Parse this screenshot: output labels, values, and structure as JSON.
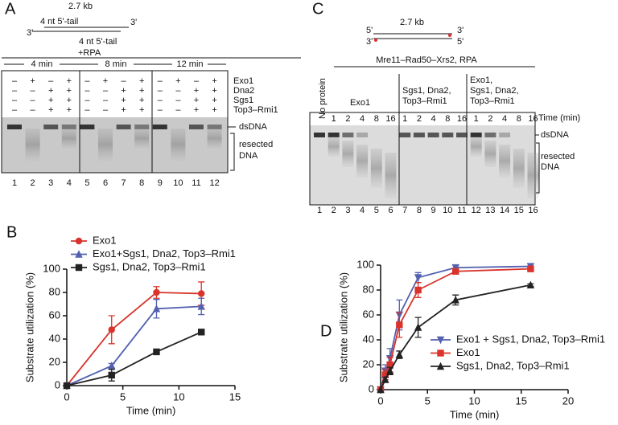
{
  "gel_a": {
    "panel_label": "A",
    "length": "2.7 kb",
    "tail_top": "4 nt 5'-tail",
    "end_top": "3'",
    "end_bottom": "3'",
    "tail_bottom": "4 nt 5'-tail",
    "condition": "+RPA",
    "times": [
      "4 min",
      "8 min",
      "12 min"
    ],
    "row_labels": [
      "Exo1",
      "Dna2",
      "Sgs1",
      "Top3–Rmi1"
    ],
    "signs": [
      [
        "–",
        "+",
        "–",
        "+",
        "–",
        "+",
        "–",
        "+",
        "–",
        "+",
        "–",
        "+"
      ],
      [
        "–",
        "–",
        "+",
        "+",
        "–",
        "–",
        "+",
        "+",
        "–",
        "–",
        "+",
        "+"
      ],
      [
        "–",
        "–",
        "+",
        "+",
        "–",
        "–",
        "+",
        "+",
        "–",
        "–",
        "+",
        "+"
      ],
      [
        "–",
        "–",
        "+",
        "+",
        "–",
        "–",
        "+",
        "+",
        "–",
        "–",
        "+",
        "+"
      ]
    ],
    "band_label": "dsDNA",
    "smear_label": [
      "resected",
      "DNA"
    ],
    "lanes": [
      "1",
      "2",
      "3",
      "4",
      "5",
      "6",
      "7",
      "8",
      "9",
      "10",
      "11",
      "12"
    ]
  },
  "gel_c": {
    "panel_label": "C",
    "length": "2.7 kb",
    "end_top_left": "5'",
    "end_bottom_left": "3'",
    "end_top_right": "3'",
    "end_bottom_right": "5'",
    "header": "Mre11–Rad50–Xrs2, RPA",
    "no_protein": "No protein",
    "groups": [
      [
        "Exo1"
      ],
      [
        "Sgs1, Dna2,",
        "Top3–Rmi1"
      ],
      [
        "Exo1,",
        "Sgs1, Dna2,",
        "Top3–Rmi1"
      ]
    ],
    "time_label": "Time (min)",
    "times": [
      "1",
      "2",
      "4",
      "8",
      "16",
      "1",
      "2",
      "4",
      "8",
      "16",
      "1",
      "2",
      "4",
      "8",
      "16"
    ],
    "band_label": "dsDNA",
    "smear_label": [
      "resected",
      "DNA"
    ],
    "lanes": [
      "1",
      "2",
      "3",
      "4",
      "5",
      "6",
      "7",
      "8",
      "9",
      "10",
      "11",
      "12",
      "13",
      "14",
      "15",
      "16"
    ]
  },
  "chart_data": [
    {
      "type": "line",
      "panel_label": "B",
      "y_label": "Substrate utilization (%)",
      "x_label": "Time (min)",
      "x": [
        0,
        4,
        8,
        12
      ],
      "xlim": [
        0,
        15
      ],
      "xticks": [
        0,
        5,
        10,
        15
      ],
      "ylim": [
        0,
        100
      ],
      "yticks": [
        0,
        20,
        40,
        60,
        80,
        100
      ],
      "series": [
        {
          "name": "Exo1",
          "color": "#d9332b",
          "marker": "circle",
          "values": [
            0,
            48,
            80,
            79
          ],
          "errors": [
            0,
            12,
            5,
            10
          ]
        },
        {
          "name": "Exo1+Sgs1, Dna2, Top3–Rmi1",
          "color": "#5361b0",
          "marker": "triangle-up",
          "values": [
            0,
            17,
            66,
            68
          ],
          "errors": [
            0,
            2,
            8,
            7
          ]
        },
        {
          "name": "Sgs1, Dna2, Top3–Rmi1",
          "color": "#222222",
          "marker": "square",
          "values": [
            0,
            9,
            29,
            46
          ],
          "errors": [
            0,
            5,
            1,
            1
          ]
        }
      ]
    },
    {
      "type": "line",
      "panel_label": "D",
      "y_label": "Substrate utilization (%)",
      "x_label": "Time (min)",
      "x": [
        0,
        0.5,
        1,
        2,
        4,
        8,
        16
      ],
      "xlim": [
        0,
        20
      ],
      "xticks": [
        0,
        5,
        10,
        15,
        20
      ],
      "ylim": [
        0,
        100
      ],
      "yticks": [
        0,
        20,
        40,
        60,
        80,
        100
      ],
      "series": [
        {
          "name": "Exo1 + Sgs1, Dna2, Top3–Rmi1",
          "color": "#5361b0",
          "marker": "triangle-down",
          "values": [
            0,
            15,
            25,
            60,
            90,
            98,
            99
          ],
          "errors": [
            0,
            5,
            8,
            12,
            4,
            2,
            2
          ]
        },
        {
          "name": "Exo1",
          "color": "#d9332b",
          "marker": "square",
          "values": [
            0,
            12,
            20,
            52,
            80,
            95,
            97
          ],
          "errors": [
            0,
            4,
            6,
            10,
            6,
            2,
            1
          ]
        },
        {
          "name": "Sgs1, Dna2, Top3–Rmi1",
          "color": "#222222",
          "marker": "triangle-up",
          "values": [
            0,
            8,
            15,
            28,
            50,
            72,
            84
          ],
          "errors": [
            0,
            2,
            3,
            3,
            8,
            4,
            1
          ]
        }
      ]
    }
  ]
}
